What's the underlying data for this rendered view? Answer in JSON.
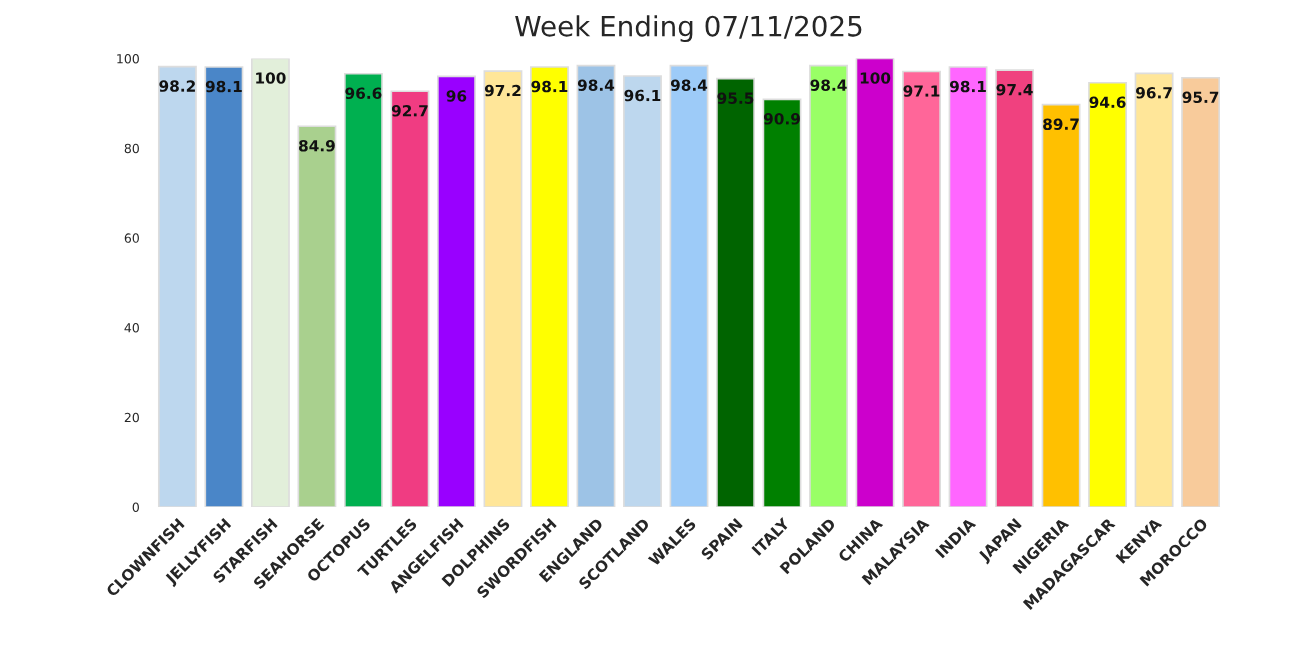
{
  "chart_data": {
    "type": "bar",
    "title": "Week Ending 07/11/2025",
    "categories": [
      "CLOWNFISH",
      "JELLYFISH",
      "STARFISH",
      "SEAHORSE",
      "OCTOPUS",
      "TURTLES",
      "ANGELFISH",
      "DOLPHINS",
      "SWORDFISH",
      "ENGLAND",
      "SCOTLAND",
      "WALES",
      "SPAIN",
      "ITALY",
      "POLAND",
      "CHINA",
      "MALAYSIA",
      "INDIA",
      "JAPAN",
      "NIGERIA",
      "MADAGASCAR",
      "KENYA",
      "MOROCCO"
    ],
    "values": [
      98.2,
      98.1,
      100,
      84.9,
      96.6,
      92.7,
      96,
      97.2,
      98.1,
      98.4,
      96.1,
      98.4,
      95.5,
      90.9,
      98.4,
      100,
      97.1,
      98.1,
      97.4,
      89.7,
      94.6,
      96.7,
      95.7
    ],
    "colors": [
      "#bdd7ee",
      "#4a86c8",
      "#e2efda",
      "#a9d08e",
      "#00b050",
      "#f03c82",
      "#9900ff",
      "#ffe699",
      "#ffff00",
      "#9dc3e6",
      "#bdd7ee",
      "#9dcbf8",
      "#006400",
      "#008000",
      "#99ff66",
      "#cc00cc",
      "#ff6699",
      "#ff66ff",
      "#f0417f",
      "#ffc000",
      "#ffff00",
      "#ffe699",
      "#f8cb9b"
    ],
    "data_labels": true,
    "ylim": [
      0,
      100
    ],
    "yticks": [
      0,
      20,
      40,
      60,
      80,
      100
    ],
    "grid": false,
    "legend": false
  }
}
